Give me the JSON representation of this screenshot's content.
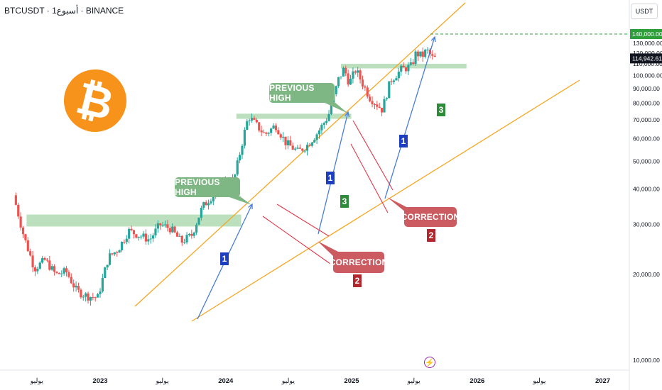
{
  "title": "BTCUSDT · 1أسبوع · BINANCE",
  "currency_label": "USDT",
  "logo": {
    "name": "bitcoin-logo",
    "symbol": "₿",
    "color": "#f7931a"
  },
  "annotations": {
    "previous_high_label": "PREVIOUS HIGH",
    "correction_label": "CORRECTION",
    "wave_1": "1",
    "wave_2": "2",
    "wave_3": "3"
  },
  "colors": {
    "up": "#26a69a",
    "down": "#ef5350",
    "channel": "#f5a623",
    "zone": "#a5d6a7",
    "target": "#2e9e3a",
    "impulse": "#4a7cd6",
    "correction_line": "#e0384a",
    "current_price_label": "#131722"
  },
  "chart_data": {
    "type": "candlestick",
    "symbol": "BTCUSDT",
    "exchange": "BINANCE",
    "interval": "1W",
    "y_axis": {
      "scale": "log",
      "ticks": [
        10000,
        20000,
        30000,
        40000,
        50000,
        60000,
        70000,
        80000,
        90000,
        100000,
        110000,
        120000,
        130000,
        140000
      ],
      "tick_labels": [
        "10,000.00",
        "20,000.00",
        "30,000.00",
        "40,000.00",
        "50,000.00",
        "60,000.00",
        "70,000.00",
        "80,000.00",
        "90,000.00",
        "100,000.00",
        "110,000.00",
        "120,000.00",
        "130,000.00",
        "140,000.00"
      ]
    },
    "x_axis": {
      "tick_labels": [
        "يوليو",
        "2023",
        "يوليو",
        "2024",
        "يوليو",
        "2025",
        "يوليو",
        "2026",
        "يوليو",
        "2027"
      ],
      "tick_dates": [
        "2022-07-01",
        "2023-01-01",
        "2023-07-01",
        "2024-01-01",
        "2024-07-01",
        "2025-01-01",
        "2025-07-01",
        "2026-01-01",
        "2026-07-01",
        "2027-01-01"
      ]
    },
    "current_price": 114942.61,
    "current_price_label": "114,942.61",
    "target_price": 140000,
    "target_price_label": "140,000.00",
    "price_path": [
      [
        "2022-05-01",
        38000
      ],
      [
        "2022-06-01",
        27000
      ],
      [
        "2022-07-01",
        21000
      ],
      [
        "2022-08-01",
        22500
      ],
      [
        "2022-09-01",
        20000
      ],
      [
        "2022-10-01",
        20500
      ],
      [
        "2022-11-01",
        17500
      ],
      [
        "2022-12-01",
        16800
      ],
      [
        "2023-01-01",
        16600
      ],
      [
        "2023-02-01",
        23000
      ],
      [
        "2023-03-01",
        24500
      ],
      [
        "2023-04-01",
        28500
      ],
      [
        "2023-05-01",
        27500
      ],
      [
        "2023-06-01",
        26500
      ],
      [
        "2023-07-01",
        30000
      ],
      [
        "2023-08-01",
        29000
      ],
      [
        "2023-09-01",
        26000
      ],
      [
        "2023-10-01",
        27500
      ],
      [
        "2023-11-01",
        34500
      ],
      [
        "2023-12-01",
        38000
      ],
      [
        "2024-01-01",
        42500
      ],
      [
        "2024-02-01",
        43000
      ],
      [
        "2024-03-01",
        62000
      ],
      [
        "2024-03-14",
        72000
      ],
      [
        "2024-04-01",
        68000
      ],
      [
        "2024-05-01",
        62000
      ],
      [
        "2024-06-01",
        67000
      ],
      [
        "2024-07-01",
        58000
      ],
      [
        "2024-08-05",
        54000
      ],
      [
        "2024-09-01",
        57000
      ],
      [
        "2024-10-01",
        63000
      ],
      [
        "2024-11-01",
        72000
      ],
      [
        "2024-12-01",
        97000
      ],
      [
        "2024-12-17",
        106000
      ],
      [
        "2025-01-01",
        94000
      ],
      [
        "2025-01-20",
        105000
      ],
      [
        "2025-02-01",
        98000
      ],
      [
        "2025-03-01",
        84000
      ],
      [
        "2025-04-07",
        76000
      ],
      [
        "2025-05-01",
        96000
      ],
      [
        "2025-06-01",
        105000
      ],
      [
        "2025-07-01",
        108000
      ],
      [
        "2025-07-14",
        120000
      ],
      [
        "2025-08-01",
        117000
      ],
      [
        "2025-08-14",
        123000
      ],
      [
        "2025-09-01",
        114942.61
      ]
    ],
    "support_zones": [
      {
        "low": 29500,
        "high": 32500,
        "from": "2022-06-01",
        "to": "2024-02-15"
      },
      {
        "low": 70500,
        "high": 73500,
        "from": "2024-02-01",
        "to": "2024-12-31"
      },
      {
        "low": 106000,
        "high": 110000,
        "from": "2024-12-01",
        "to": "2025-12-01"
      }
    ]
  }
}
